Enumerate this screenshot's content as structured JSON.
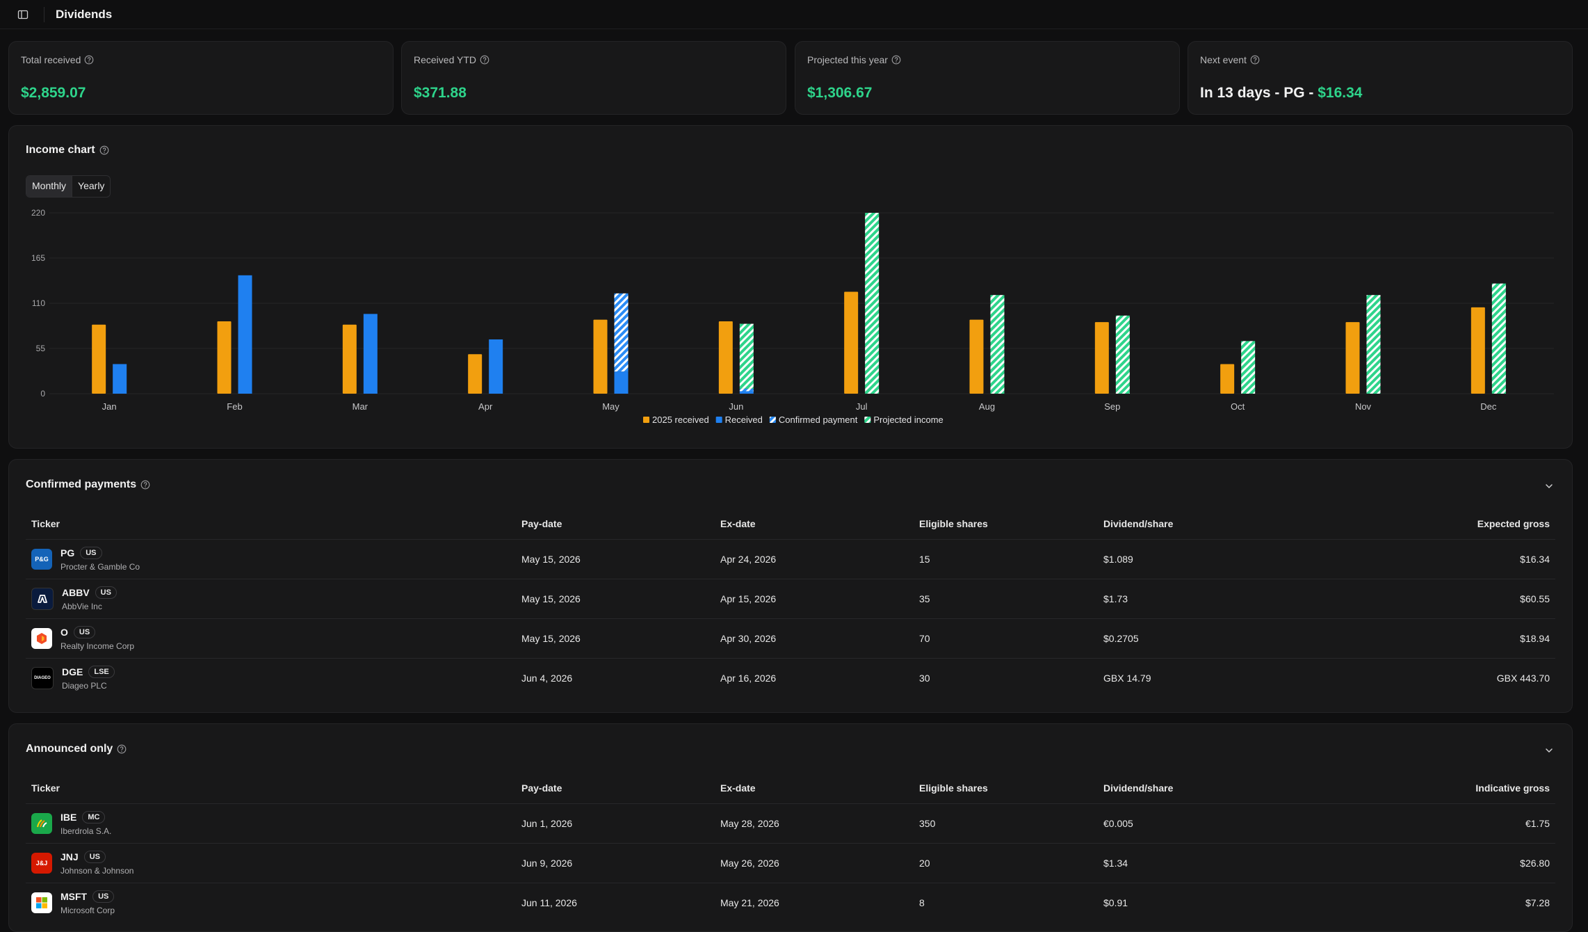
{
  "header": {
    "title": "Dividends"
  },
  "stats": [
    {
      "label": "Total received",
      "value": "$2,859.07"
    },
    {
      "label": "Received YTD",
      "value": "$371.88"
    },
    {
      "label": "Projected this year",
      "value": "$1,306.67"
    },
    {
      "label": "Next event",
      "value_prefix": "In 13 days - PG - ",
      "value_amount": "$16.34"
    }
  ],
  "income_chart": {
    "title": "Income chart",
    "toggle": {
      "monthly": "Monthly",
      "yearly": "Yearly",
      "selected": "Monthly"
    }
  },
  "chart_data": {
    "type": "bar",
    "categories": [
      "Jan",
      "Feb",
      "Mar",
      "Apr",
      "May",
      "Jun",
      "Jul",
      "Aug",
      "Sep",
      "Oct",
      "Nov",
      "Dec"
    ],
    "ylim": [
      0,
      220
    ],
    "yticks": [
      0,
      55,
      110,
      165,
      220
    ],
    "grid": true,
    "legend_position": "bottom",
    "series": [
      {
        "name": "2025 received",
        "color": "#f29f0f",
        "pattern": "solid",
        "values": [
          84,
          88,
          84,
          48,
          90,
          88,
          124,
          90,
          87,
          36,
          87,
          105
        ]
      },
      {
        "name": "Received",
        "color": "#1f80f0",
        "pattern": "solid",
        "values": [
          36,
          144,
          97,
          66,
          27,
          3,
          0,
          0,
          0,
          0,
          0,
          0
        ]
      },
      {
        "name": "Confirmed payment",
        "color": "#2b8cf5",
        "pattern": "hatched",
        "values": [
          0,
          0,
          0,
          0,
          95,
          3,
          0,
          0,
          0,
          0,
          0,
          0
        ]
      },
      {
        "name": "Projected income",
        "color": "#2ed48b",
        "pattern": "hatched",
        "values": [
          0,
          0,
          0,
          0,
          0,
          79,
          220,
          120,
          95,
          64,
          120,
          134
        ]
      }
    ]
  },
  "confirmed": {
    "title": "Confirmed payments",
    "columns": [
      "Ticker",
      "Pay-date",
      "Ex-date",
      "Eligible shares",
      "Dividend/share",
      "Expected gross"
    ],
    "rows": [
      {
        "ticker": "PG",
        "exchange": "US",
        "company": "Procter & Gamble Co",
        "logo_text": "P&G",
        "logo_color": "#1463b8",
        "pay_date": "May 15, 2026",
        "ex_date": "Apr 24, 2026",
        "shares": "15",
        "dps": "$1.089",
        "gross": "$16.34"
      },
      {
        "ticker": "ABBV",
        "exchange": "US",
        "company": "AbbVie Inc",
        "logo_text": "",
        "logo_color": "#0a1b3d",
        "pay_date": "May 15, 2026",
        "ex_date": "Apr 15, 2026",
        "shares": "35",
        "dps": "$1.73",
        "gross": "$60.55"
      },
      {
        "ticker": "O",
        "exchange": "US",
        "company": "Realty Income Corp",
        "logo_text": "",
        "logo_color": "#ffffff",
        "pay_date": "May 15, 2026",
        "ex_date": "Apr 30, 2026",
        "shares": "70",
        "dps": "$0.2705",
        "gross": "$18.94"
      },
      {
        "ticker": "DGE",
        "exchange": "LSE",
        "company": "Diageo PLC",
        "logo_text": "DIAGEO",
        "logo_color": "#000000",
        "pay_date": "Jun 4, 2026",
        "ex_date": "Apr 16, 2026",
        "shares": "30",
        "dps": "GBX 14.79",
        "gross": "GBX 443.70"
      }
    ]
  },
  "announced": {
    "title": "Announced only",
    "columns": [
      "Ticker",
      "Pay-date",
      "Ex-date",
      "Eligible shares",
      "Dividend/share",
      "Indicative gross"
    ],
    "rows": [
      {
        "ticker": "IBE",
        "exchange": "MC",
        "company": "Iberdrola S.A.",
        "logo_text": "",
        "logo_color": "#1aa84a",
        "pay_date": "Jun 1, 2026",
        "ex_date": "May 28, 2026",
        "shares": "350",
        "dps": "€0.005",
        "gross": "€1.75"
      },
      {
        "ticker": "JNJ",
        "exchange": "US",
        "company": "Johnson & Johnson",
        "logo_text": "J&J",
        "logo_color": "#d51900",
        "pay_date": "Jun 9, 2026",
        "ex_date": "May 26, 2026",
        "shares": "20",
        "dps": "$1.34",
        "gross": "$26.80"
      },
      {
        "ticker": "MSFT",
        "exchange": "US",
        "company": "Microsoft Corp",
        "logo_text": "",
        "logo_color": "#ffffff",
        "pay_date": "Jun 11, 2026",
        "ex_date": "May 21, 2026",
        "shares": "8",
        "dps": "$0.91",
        "gross": "$7.28"
      }
    ]
  }
}
